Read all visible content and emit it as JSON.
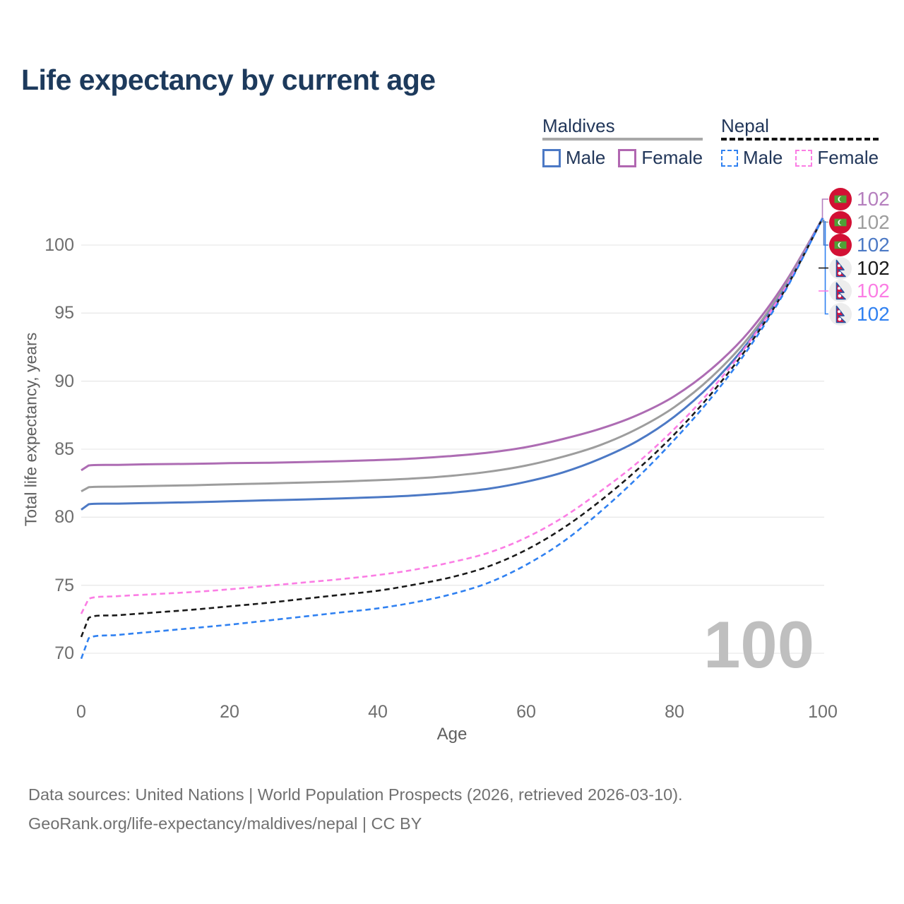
{
  "chart_data": {
    "type": "line",
    "title": "Life expectancy by current age",
    "xlabel": "Age",
    "ylabel": "Total life expectancy, years",
    "xlim": [
      0,
      100
    ],
    "ylim": [
      70,
      102
    ],
    "x_ticks": [
      0,
      20,
      40,
      60,
      80,
      100
    ],
    "y_ticks": [
      70,
      75,
      80,
      85,
      90,
      95,
      100
    ],
    "grid": "horizontal",
    "x": [
      0,
      1,
      5,
      10,
      15,
      20,
      25,
      30,
      35,
      40,
      45,
      50,
      55,
      60,
      65,
      70,
      75,
      80,
      85,
      90,
      95,
      100
    ],
    "series": [
      {
        "name": "Maldives Female",
        "country": "Maldives",
        "sex": "Female",
        "style": "solid",
        "color": "#ad6cb3",
        "values": [
          83.45,
          83.8,
          83.85,
          83.9,
          83.92,
          83.97,
          84.0,
          84.05,
          84.12,
          84.2,
          84.32,
          84.5,
          84.75,
          85.15,
          85.75,
          86.5,
          87.5,
          88.9,
          90.9,
          93.6,
          97.3,
          102
        ]
      },
      {
        "name": "Maldives",
        "country": "Maldives",
        "sex": "Both sexes",
        "style": "solid",
        "color": "#9d9d9d",
        "values": [
          81.9,
          82.2,
          82.25,
          82.3,
          82.35,
          82.42,
          82.48,
          82.55,
          82.62,
          82.72,
          82.85,
          83.05,
          83.35,
          83.8,
          84.45,
          85.3,
          86.5,
          88.1,
          90.3,
          93.2,
          97.1,
          102
        ]
      },
      {
        "name": "Maldives Male",
        "country": "Maldives",
        "sex": "Male",
        "style": "solid",
        "color": "#4c79c5",
        "values": [
          80.55,
          80.95,
          81.0,
          81.05,
          81.1,
          81.17,
          81.24,
          81.3,
          81.38,
          81.47,
          81.6,
          81.8,
          82.1,
          82.6,
          83.3,
          84.3,
          85.6,
          87.4,
          89.8,
          92.9,
          96.9,
          102
        ]
      },
      {
        "name": "Nepal",
        "country": "Nepal",
        "sex": "Both sexes",
        "style": "dashed",
        "color": "#1a1a1a",
        "values": [
          71.2,
          72.6,
          72.8,
          73.0,
          73.2,
          73.45,
          73.7,
          74.0,
          74.3,
          74.6,
          75.05,
          75.6,
          76.4,
          77.6,
          79.2,
          81.2,
          83.5,
          86.1,
          89.1,
          92.6,
          96.8,
          102
        ]
      },
      {
        "name": "Nepal Female",
        "country": "Nepal",
        "sex": "Female",
        "style": "dashed",
        "color": "#fb7de4",
        "values": [
          72.9,
          74.0,
          74.2,
          74.35,
          74.5,
          74.7,
          74.95,
          75.2,
          75.45,
          75.75,
          76.15,
          76.7,
          77.4,
          78.5,
          80.0,
          81.9,
          84.0,
          86.5,
          89.4,
          92.8,
          96.9,
          102
        ]
      },
      {
        "name": "Nepal Male",
        "country": "Nepal",
        "sex": "Male",
        "style": "dashed",
        "color": "#3081f1",
        "values": [
          69.6,
          71.1,
          71.35,
          71.6,
          71.85,
          72.1,
          72.4,
          72.7,
          73.0,
          73.3,
          73.75,
          74.35,
          75.2,
          76.5,
          78.2,
          80.4,
          82.9,
          85.7,
          88.8,
          92.4,
          96.7,
          102
        ]
      }
    ],
    "legend": {
      "groups": [
        {
          "label": "Maldives",
          "line_style": "solid",
          "underline_color": "#a8a8a8",
          "items": [
            {
              "label": "Male",
              "color": "#4c79c5"
            },
            {
              "label": "Female",
              "color": "#b167b1"
            }
          ]
        },
        {
          "label": "Nepal",
          "line_style": "dashed",
          "underline_color": "#141414",
          "items": [
            {
              "label": "Male",
              "color": "#3081f1"
            },
            {
              "label": "Female",
              "color": "#fb7de4"
            }
          ]
        }
      ]
    },
    "end_labels": [
      {
        "value": "102",
        "flag": "maldives-flag",
        "color": "#b57fbe",
        "series": "Maldives Female"
      },
      {
        "value": "102",
        "flag": "maldives-flag",
        "color": "#9d9d9d",
        "series": "Maldives"
      },
      {
        "value": "102",
        "flag": "maldives-flag",
        "color": "#4c79c5",
        "series": "Maldives Male"
      },
      {
        "value": "102",
        "flag": "nepal-flag",
        "color": "#1a1a1a",
        "series": "Nepal"
      },
      {
        "value": "102",
        "flag": "nepal-flag",
        "color": "#fb7de4",
        "series": "Nepal Female"
      },
      {
        "value": "102",
        "flag": "nepal-flag",
        "color": "#3081f1",
        "series": "Nepal Male"
      }
    ],
    "watermark": "100"
  },
  "footer": {
    "line1": "Data sources: United Nations | World Population Prospects (2026, retrieved 2026-03-10).",
    "line2": "GeoRank.org/life-expectancy/maldives/nepal | CC BY"
  }
}
